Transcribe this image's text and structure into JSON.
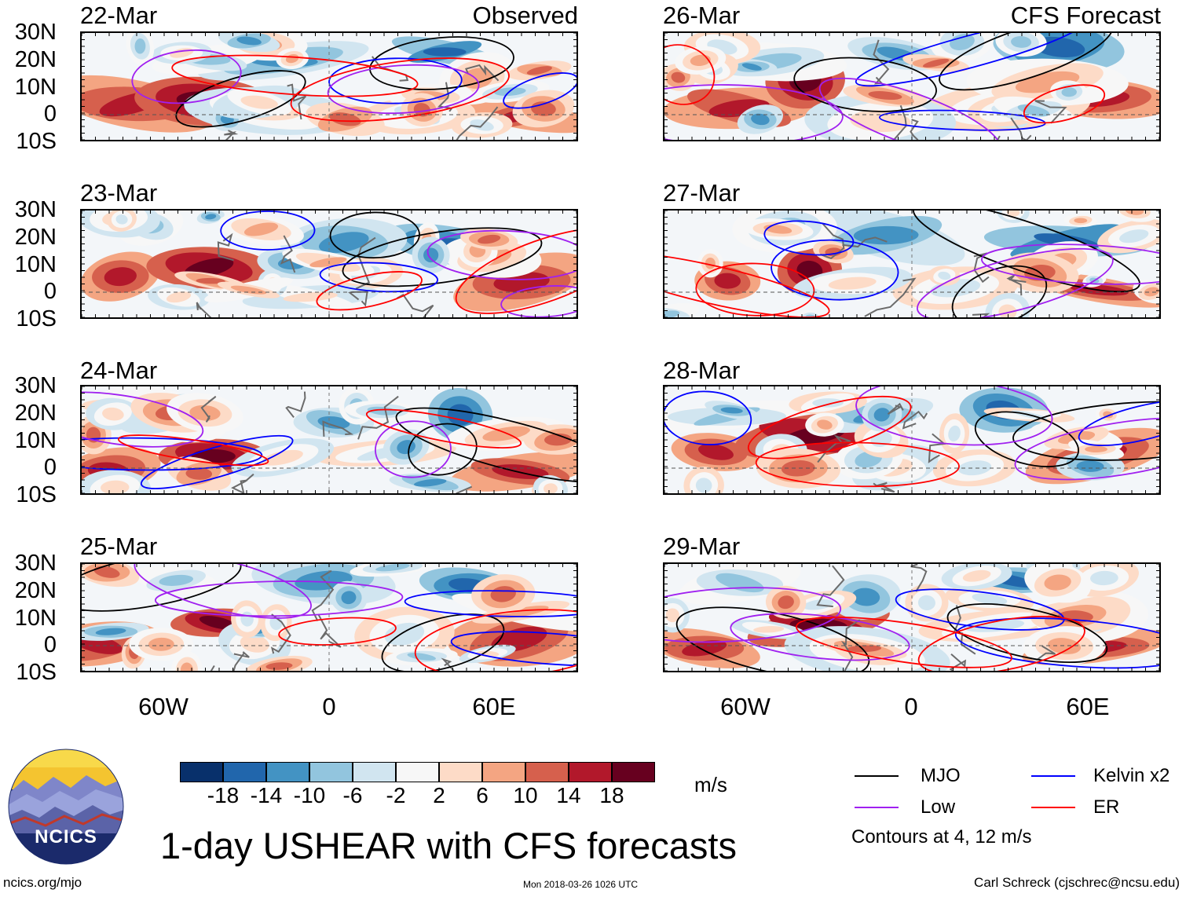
{
  "header": {
    "observed_label": "Observed",
    "forecast_label": "CFS Forecast"
  },
  "panels": {
    "left": [
      {
        "date": "22-Mar"
      },
      {
        "date": "23-Mar"
      },
      {
        "date": "24-Mar"
      },
      {
        "date": "25-Mar"
      }
    ],
    "right": [
      {
        "date": "26-Mar"
      },
      {
        "date": "27-Mar"
      },
      {
        "date": "28-Mar"
      },
      {
        "date": "29-Mar"
      }
    ]
  },
  "axes": {
    "lat_labels": [
      "30N",
      "20N",
      "10N",
      "0",
      "10S"
    ],
    "lon_labels": [
      "60W",
      "0",
      "60E"
    ]
  },
  "colorbar": {
    "unit": "m/s",
    "tick_labels": [
      "-18",
      "-14",
      "-10",
      "-6",
      "-2",
      "2",
      "6",
      "10",
      "14",
      "18"
    ],
    "colors": [
      "#08306b",
      "#2166ac",
      "#4393c3",
      "#92c5de",
      "#d1e5f0",
      "#f7f7f7",
      "#fddbc7",
      "#f4a582",
      "#d6604d",
      "#b2182b",
      "#67001f"
    ]
  },
  "legend": {
    "items": [
      {
        "label": "MJO",
        "color": "#000000"
      },
      {
        "label": "Kelvin x2",
        "color": "#0000ff"
      },
      {
        "label": "Low",
        "color": "#a020f0"
      },
      {
        "label": "ER",
        "color": "#ff0000"
      }
    ],
    "note": "Contours at 4, 12 m/s"
  },
  "footer": {
    "logo_text": "NCICS",
    "title": "1-day USHEAR with CFS forecasts",
    "site": "ncics.org/mjo",
    "timestamp": "Mon 2018-03-26 1026 UTC",
    "credit": "Carl Schreck (cjschrec@ncsu.edu)"
  }
}
